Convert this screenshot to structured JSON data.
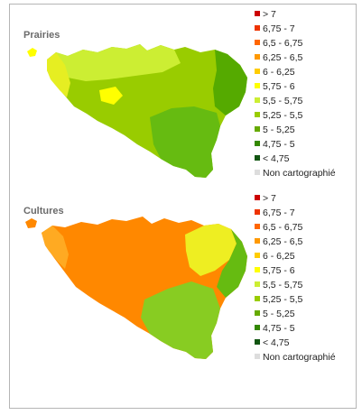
{
  "maps": [
    {
      "title": "Prairies",
      "fills": {
        "base": "#99cc00",
        "north": "#ccee33",
        "west": "#e6ee22",
        "south": "#66bb11",
        "east": "#55aa00",
        "patch": "#ffff00"
      }
    },
    {
      "title": "Cultures",
      "fills": {
        "base": "#ff8800",
        "north": "#ff7700",
        "west": "#ffaa22",
        "south": "#88cc22",
        "east": "#66bb11",
        "patch": "#eeee22"
      }
    }
  ],
  "legend": [
    {
      "label": "> 7",
      "color": "#cc0000"
    },
    {
      "label": "6,75 - 7",
      "color": "#ee3300"
    },
    {
      "label": "6,5 - 6,75",
      "color": "#ff6600"
    },
    {
      "label": "6,25 - 6,5",
      "color": "#ff9900"
    },
    {
      "label": "6 - 6,25",
      "color": "#ffcc00"
    },
    {
      "label": "5,75 - 6",
      "color": "#ffff00"
    },
    {
      "label": "5,5 - 5,75",
      "color": "#ccee33"
    },
    {
      "label": "5,25 - 5,5",
      "color": "#99cc00"
    },
    {
      "label": "5 - 5,25",
      "color": "#66aa00"
    },
    {
      "label": "4,75 - 5",
      "color": "#338800"
    },
    {
      "label": "< 4,75",
      "color": "#115511"
    },
    {
      "label": "Non cartographié",
      "color": "#dddddd"
    }
  ]
}
